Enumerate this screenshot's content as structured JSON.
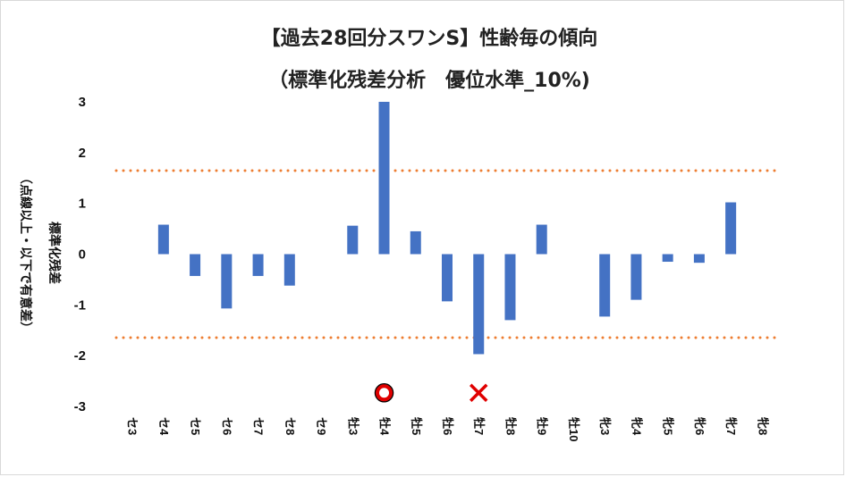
{
  "chart_data": {
    "type": "bar",
    "title": "【過去28回分スワンS】性齢毎の傾向",
    "subtitle": "（標準化残差分析　優位水準_10%)",
    "ylabel_main": "標準化残差",
    "ylabel_sub": "（点線以上・以下で有意差）",
    "ylim": [
      -3,
      3
    ],
    "yticks": [
      3,
      2,
      1,
      0,
      -1,
      -2,
      -3
    ],
    "categories": [
      "セ3",
      "セ4",
      "セ5",
      "セ6",
      "セ7",
      "セ8",
      "セ9",
      "牡3",
      "牡4",
      "牡5",
      "牡6",
      "牡7",
      "牡8",
      "牡9",
      "牡10",
      "牝3",
      "牝4",
      "牝5",
      "牝6",
      "牝7",
      "牝8"
    ],
    "values": [
      0,
      0.58,
      -0.43,
      -1.07,
      -0.43,
      -0.62,
      0,
      0.56,
      3.0,
      0.45,
      -0.93,
      -1.97,
      -1.3,
      0.58,
      0,
      -1.23,
      -0.9,
      -0.15,
      -0.17,
      1.02,
      0
    ],
    "thresholds": [
      1.645,
      -1.645
    ],
    "bar_color": "#4472C4",
    "threshold_color": "#ED7D31",
    "markers": [
      {
        "category": "牡4",
        "value": -2.75,
        "symbol": "circle",
        "color": "#E00000"
      },
      {
        "category": "牡7",
        "value": -2.75,
        "symbol": "cross",
        "color": "#E00000"
      }
    ],
    "grid": false
  }
}
